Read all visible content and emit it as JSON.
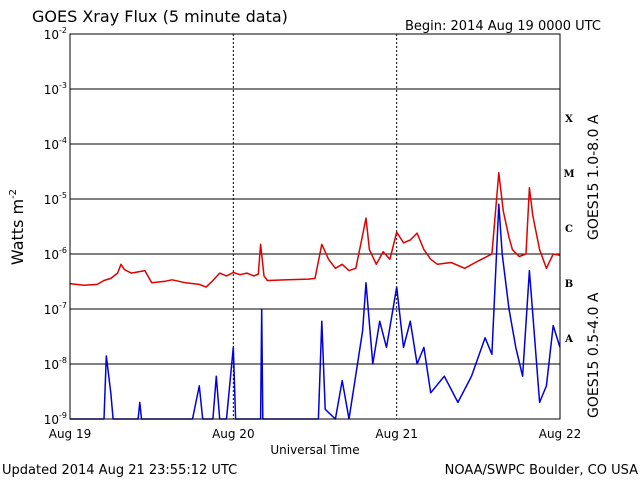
{
  "header": {
    "title": "GOES Xray Flux (5 minute data)",
    "begin": "Begin:  2014 Aug 19 0000 UTC"
  },
  "footer": {
    "updated": "Updated 2014 Aug 21 23:55:12 UTC",
    "source": "NOAA/SWPC Boulder, CO USA"
  },
  "colors": {
    "long_channel": "#e00000",
    "short_channel": "#0000e0",
    "grid": "#000000"
  },
  "chart_data": {
    "type": "line",
    "title": "GOES Xray Flux (5 minute data)",
    "xlabel": "Universal Time",
    "ylabel": "Watts m",
    "ylabel_exponent": "-2",
    "y_scale": "log",
    "ylim": [
      1e-09,
      0.01
    ],
    "xlim": [
      "2014-08-19T00:00Z",
      "2014-08-22T00:00Z"
    ],
    "x_ticks": [
      {
        "t": "2014-08-19T00:00Z",
        "label": "Aug 19"
      },
      {
        "t": "2014-08-20T00:00Z",
        "label": "Aug 20"
      },
      {
        "t": "2014-08-21T00:00Z",
        "label": "Aug 21"
      },
      {
        "t": "2014-08-22T00:00Z",
        "label": "Aug 22"
      }
    ],
    "y_ticks": [
      {
        "v": 0.01,
        "base": "10",
        "exp": "-2"
      },
      {
        "v": 0.001,
        "base": "10",
        "exp": "-3"
      },
      {
        "v": 0.0001,
        "base": "10",
        "exp": "-4"
      },
      {
        "v": 1e-05,
        "base": "10",
        "exp": "-5"
      },
      {
        "v": 1e-06,
        "base": "10",
        "exp": "-6"
      },
      {
        "v": 1e-07,
        "base": "10",
        "exp": "-7"
      },
      {
        "v": 1e-08,
        "base": "10",
        "exp": "-8"
      },
      {
        "v": 1e-09,
        "base": "10",
        "exp": "-9"
      }
    ],
    "flare_classes": [
      {
        "label": "X",
        "v": 0.0003
      },
      {
        "label": "M",
        "v": 3e-05
      },
      {
        "label": "C",
        "v": 3e-06
      },
      {
        "label": "B",
        "v": 3e-07
      },
      {
        "label": "A",
        "v": 3e-08
      }
    ],
    "grid": "horizontal at decades",
    "series": [
      {
        "name": "GOES15 1.0-8.0 A",
        "color": "#e00000",
        "points": [
          [
            "2014-08-19T00:00Z",
            2.9e-07
          ],
          [
            "2014-08-19T02:00Z",
            2.7e-07
          ],
          [
            "2014-08-19T04:00Z",
            2.8e-07
          ],
          [
            "2014-08-19T05:00Z",
            3.3e-07
          ],
          [
            "2014-08-19T06:00Z",
            3.6e-07
          ],
          [
            "2014-08-19T07:00Z",
            4.5e-07
          ],
          [
            "2014-08-19T07:30Z",
            6.5e-07
          ],
          [
            "2014-08-19T08:00Z",
            5.2e-07
          ],
          [
            "2014-08-19T09:00Z",
            4.5e-07
          ],
          [
            "2014-08-19T11:00Z",
            5e-07
          ],
          [
            "2014-08-19T12:00Z",
            3e-07
          ],
          [
            "2014-08-19T14:00Z",
            3.2e-07
          ],
          [
            "2014-08-19T15:00Z",
            3.4e-07
          ],
          [
            "2014-08-19T17:00Z",
            3e-07
          ],
          [
            "2014-08-19T19:00Z",
            2.8e-07
          ],
          [
            "2014-08-19T20:00Z",
            2.5e-07
          ],
          [
            "2014-08-19T21:00Z",
            3.3e-07
          ],
          [
            "2014-08-19T22:00Z",
            4.5e-07
          ],
          [
            "2014-08-19T23:00Z",
            4e-07
          ],
          [
            "2014-08-20T00:00Z",
            4.6e-07
          ],
          [
            "2014-08-20T01:00Z",
            4.2e-07
          ],
          [
            "2014-08-20T02:00Z",
            4.5e-07
          ],
          [
            "2014-08-20T03:00Z",
            4e-07
          ],
          [
            "2014-08-20T03:40Z",
            4.3e-07
          ],
          [
            "2014-08-20T04:00Z",
            1.5e-06
          ],
          [
            "2014-08-20T04:30Z",
            4e-07
          ],
          [
            "2014-08-20T05:00Z",
            3.3e-07
          ],
          [
            "2014-08-20T08:00Z",
            3.4e-07
          ],
          [
            "2014-08-20T11:00Z",
            3.5e-07
          ],
          [
            "2014-08-20T12:00Z",
            3.6e-07
          ],
          [
            "2014-08-20T13:00Z",
            1.5e-06
          ],
          [
            "2014-08-20T14:00Z",
            8e-07
          ],
          [
            "2014-08-20T15:00Z",
            5.5e-07
          ],
          [
            "2014-08-20T16:00Z",
            6.5e-07
          ],
          [
            "2014-08-20T17:00Z",
            5e-07
          ],
          [
            "2014-08-20T18:00Z",
            5.5e-07
          ],
          [
            "2014-08-20T19:00Z",
            2.2e-06
          ],
          [
            "2014-08-20T19:30Z",
            4.5e-06
          ],
          [
            "2014-08-20T20:00Z",
            1.2e-06
          ],
          [
            "2014-08-20T21:00Z",
            6.5e-07
          ],
          [
            "2014-08-20T22:00Z",
            1.1e-06
          ],
          [
            "2014-08-20T23:00Z",
            8e-07
          ],
          [
            "2014-08-21T00:00Z",
            2.5e-06
          ],
          [
            "2014-08-21T01:00Z",
            1.6e-06
          ],
          [
            "2014-08-21T02:00Z",
            1.8e-06
          ],
          [
            "2014-08-21T03:00Z",
            2.4e-06
          ],
          [
            "2014-08-21T04:00Z",
            1.2e-06
          ],
          [
            "2014-08-21T05:00Z",
            8e-07
          ],
          [
            "2014-08-21T06:00Z",
            6.5e-07
          ],
          [
            "2014-08-21T08:00Z",
            7e-07
          ],
          [
            "2014-08-21T10:00Z",
            5.5e-07
          ],
          [
            "2014-08-21T12:00Z",
            7.5e-07
          ],
          [
            "2014-08-21T14:00Z",
            1e-06
          ],
          [
            "2014-08-21T15:00Z",
            3e-05
          ],
          [
            "2014-08-21T15:40Z",
            6e-06
          ],
          [
            "2014-08-21T16:30Z",
            2e-06
          ],
          [
            "2014-08-21T17:00Z",
            1.2e-06
          ],
          [
            "2014-08-21T18:00Z",
            9e-07
          ],
          [
            "2014-08-21T19:00Z",
            1e-06
          ],
          [
            "2014-08-21T19:30Z",
            1.6e-05
          ],
          [
            "2014-08-21T20:00Z",
            5e-06
          ],
          [
            "2014-08-21T21:00Z",
            1.2e-06
          ],
          [
            "2014-08-21T22:00Z",
            5.5e-07
          ],
          [
            "2014-08-21T23:00Z",
            1e-06
          ],
          [
            "2014-08-22T00:00Z",
            9.5e-07
          ]
        ]
      },
      {
        "name": "GOES15 0.5-4.0 A",
        "color": "#0000e0",
        "points": [
          [
            "2014-08-19T00:00Z",
            1e-09
          ],
          [
            "2014-08-19T05:00Z",
            1e-09
          ],
          [
            "2014-08-19T05:20Z",
            1.4e-08
          ],
          [
            "2014-08-19T06:00Z",
            3e-09
          ],
          [
            "2014-08-19T06:20Z",
            1e-09
          ],
          [
            "2014-08-19T10:00Z",
            1e-09
          ],
          [
            "2014-08-19T10:15Z",
            2e-09
          ],
          [
            "2014-08-19T10:30Z",
            1e-09
          ],
          [
            "2014-08-19T18:00Z",
            1e-09
          ],
          [
            "2014-08-19T19:00Z",
            4e-09
          ],
          [
            "2014-08-19T19:30Z",
            1e-09
          ],
          [
            "2014-08-19T21:00Z",
            1e-09
          ],
          [
            "2014-08-19T21:30Z",
            6e-09
          ],
          [
            "2014-08-19T22:00Z",
            1e-09
          ],
          [
            "2014-08-19T23:00Z",
            1e-09
          ],
          [
            "2014-08-20T00:00Z",
            2e-08
          ],
          [
            "2014-08-20T00:20Z",
            1e-09
          ],
          [
            "2014-08-20T04:00Z",
            1e-09
          ],
          [
            "2014-08-20T04:10Z",
            1e-07
          ],
          [
            "2014-08-20T04:20Z",
            1e-09
          ],
          [
            "2014-08-20T12:30Z",
            1e-09
          ],
          [
            "2014-08-20T13:00Z",
            6e-08
          ],
          [
            "2014-08-20T13:30Z",
            1.5e-09
          ],
          [
            "2014-08-20T15:00Z",
            1e-09
          ],
          [
            "2014-08-20T16:00Z",
            5e-09
          ],
          [
            "2014-08-20T17:00Z",
            1e-09
          ],
          [
            "2014-08-20T19:00Z",
            4e-08
          ],
          [
            "2014-08-20T19:30Z",
            3e-07
          ],
          [
            "2014-08-20T20:30Z",
            1e-08
          ],
          [
            "2014-08-20T21:30Z",
            6e-08
          ],
          [
            "2014-08-20T22:30Z",
            2e-08
          ],
          [
            "2014-08-21T00:00Z",
            2.5e-07
          ],
          [
            "2014-08-21T01:00Z",
            2e-08
          ],
          [
            "2014-08-21T02:00Z",
            6e-08
          ],
          [
            "2014-08-21T03:00Z",
            1e-08
          ],
          [
            "2014-08-21T04:00Z",
            2e-08
          ],
          [
            "2014-08-21T05:00Z",
            3e-09
          ],
          [
            "2014-08-21T07:00Z",
            6e-09
          ],
          [
            "2014-08-21T09:00Z",
            2e-09
          ],
          [
            "2014-08-21T11:00Z",
            6e-09
          ],
          [
            "2014-08-21T13:00Z",
            3e-08
          ],
          [
            "2014-08-21T14:00Z",
            1.5e-08
          ],
          [
            "2014-08-21T15:00Z",
            8e-06
          ],
          [
            "2014-08-21T15:30Z",
            1e-06
          ],
          [
            "2014-08-21T16:30Z",
            1e-07
          ],
          [
            "2014-08-21T17:30Z",
            2e-08
          ],
          [
            "2014-08-21T18:30Z",
            6e-09
          ],
          [
            "2014-08-21T19:30Z",
            5e-07
          ],
          [
            "2014-08-21T20:00Z",
            8e-08
          ],
          [
            "2014-08-21T21:00Z",
            2e-09
          ],
          [
            "2014-08-21T22:00Z",
            4e-09
          ],
          [
            "2014-08-21T23:00Z",
            5e-08
          ],
          [
            "2014-08-22T00:00Z",
            2e-08
          ]
        ]
      }
    ]
  }
}
